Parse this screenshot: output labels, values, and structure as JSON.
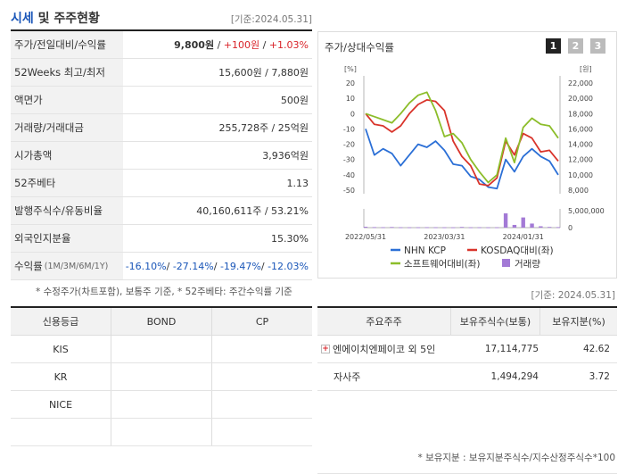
{
  "header": {
    "title_accent": "시세",
    "title_rest": "및 주주현황",
    "as_of": "[기준:2024.05.31]"
  },
  "quote_table": [
    {
      "label": "주가/전일대비/수익률",
      "value_parts": [
        {
          "text": "9,800원",
          "style": "b"
        },
        {
          "text": " / ",
          "style": ""
        },
        {
          "text": "+100원",
          "style": "red"
        },
        {
          "text": " / ",
          "style": ""
        },
        {
          "text": "+1.03%",
          "style": "red"
        }
      ]
    },
    {
      "label": "52Weeks 최고/최저",
      "value_parts": [
        {
          "text": "15,600원 / 7,880원",
          "style": ""
        }
      ]
    },
    {
      "label": "액면가",
      "value_parts": [
        {
          "text": "500원",
          "style": ""
        }
      ]
    },
    {
      "label": "거래량/거래대금",
      "value_parts": [
        {
          "text": "255,728주 / 25억원",
          "style": ""
        }
      ]
    },
    {
      "label": "시가총액",
      "value_parts": [
        {
          "text": "3,936억원",
          "style": ""
        }
      ]
    },
    {
      "label": "52주베타",
      "value_parts": [
        {
          "text": "1.13",
          "style": ""
        }
      ]
    },
    {
      "label": "발행주식수/유동비율",
      "value_parts": [
        {
          "text": "40,160,611주 / 53.21%",
          "style": ""
        }
      ]
    },
    {
      "label": "외국인지분율",
      "value_parts": [
        {
          "text": "15.30%",
          "style": ""
        }
      ]
    },
    {
      "label": "수익률",
      "label_small": "(1M/3M/6M/1Y)",
      "value_parts": [
        {
          "text": "-16.10%",
          "style": "blue"
        },
        {
          "text": "/ ",
          "style": ""
        },
        {
          "text": "-27.14%",
          "style": "blue"
        },
        {
          "text": "/ ",
          "style": ""
        },
        {
          "text": "-19.47%",
          "style": "blue"
        },
        {
          "text": "/ ",
          "style": ""
        },
        {
          "text": "-12.03%",
          "style": "blue"
        }
      ]
    }
  ],
  "quote_note": "* 수정주가(차트포함), 보통주 기준, * 52주베타: 주간수익률 기준",
  "chart_panel": {
    "title": "주가/상대수익률",
    "pages": [
      "1",
      "2",
      "3"
    ]
  },
  "chart_data": {
    "type": "line",
    "y_left_unit": "[%]",
    "y_right_unit": "[원]",
    "y_left_ticks": [
      "20",
      "10",
      "0",
      "-10",
      "-20",
      "-30",
      "-40",
      "-50"
    ],
    "y_right_ticks": [
      "22,000",
      "20,000",
      "18,000",
      "16,000",
      "14,000",
      "12,000",
      "10,000",
      "8,000"
    ],
    "volume_ticks": [
      "5,000,000",
      "0"
    ],
    "x_ticks": [
      "2022/05/31",
      "2023/03/31",
      "2024/01/31"
    ],
    "ylim_left": [
      -50,
      20
    ],
    "ylim_volume": [
      0,
      5000000
    ],
    "series": [
      {
        "name": "NHN KCP",
        "color": "#2b6fd6",
        "values": [
          -10,
          -27,
          -23,
          -26,
          -34,
          -27,
          -20,
          -22,
          -18,
          -24,
          -33,
          -34,
          -41,
          -43,
          -48,
          -49,
          -30,
          -38,
          -28,
          -23,
          -28,
          -31,
          -40
        ]
      },
      {
        "name": "KOSDAQ대비(좌)",
        "color": "#d9342b",
        "values": [
          0,
          -7,
          -8,
          -12,
          -8,
          0,
          6,
          9,
          8,
          2,
          -18,
          -28,
          -34,
          -46,
          -47,
          -42,
          -18,
          -27,
          -13,
          -16,
          -25,
          -24,
          -31
        ]
      },
      {
        "name": "소프트웨어대비(좌)",
        "color": "#8cbd2a",
        "values": [
          0,
          -2,
          -4,
          -6,
          0,
          7,
          12,
          14,
          2,
          -15,
          -13,
          -19,
          -30,
          -38,
          -45,
          -40,
          -16,
          -32,
          -9,
          -3,
          -7,
          -8,
          -16
        ]
      }
    ],
    "volume": {
      "name": "거래량",
      "color": "#a37ad6",
      "values": [
        250000,
        150000,
        120000,
        180000,
        100000,
        90000,
        100000,
        120000,
        100000,
        90000,
        80000,
        200000,
        90000,
        100000,
        80000,
        90000,
        4200000,
        800000,
        3000000,
        1200000,
        400000,
        200000,
        150000
      ]
    }
  },
  "credit_table": {
    "headers": [
      "신용등급",
      "BOND",
      "CP"
    ],
    "rows": [
      [
        "KIS",
        "",
        ""
      ],
      [
        "KR",
        "",
        ""
      ],
      [
        "NICE",
        "",
        ""
      ],
      [
        "",
        "",
        ""
      ]
    ]
  },
  "holders": {
    "as_of": "[기준: 2024.05.31]",
    "headers": [
      "주요주주",
      "보유주식수(보통)",
      "보유지분(%)"
    ],
    "rows": [
      {
        "name": "엔에이치엔페이코 외 5인",
        "shares": "17,114,775",
        "pct": "42.62",
        "expand": true
      },
      {
        "name": "자사주",
        "shares": "1,494,294",
        "pct": "3.72",
        "expand": false
      }
    ],
    "note": "* 보유지분 : 보유지분주식수/지수산정주식수*100"
  },
  "colors": {
    "accent": "#1a56b8",
    "red": "#d9242a",
    "btn_active": "#222222",
    "btn_inactive": "#bbbbbb"
  }
}
